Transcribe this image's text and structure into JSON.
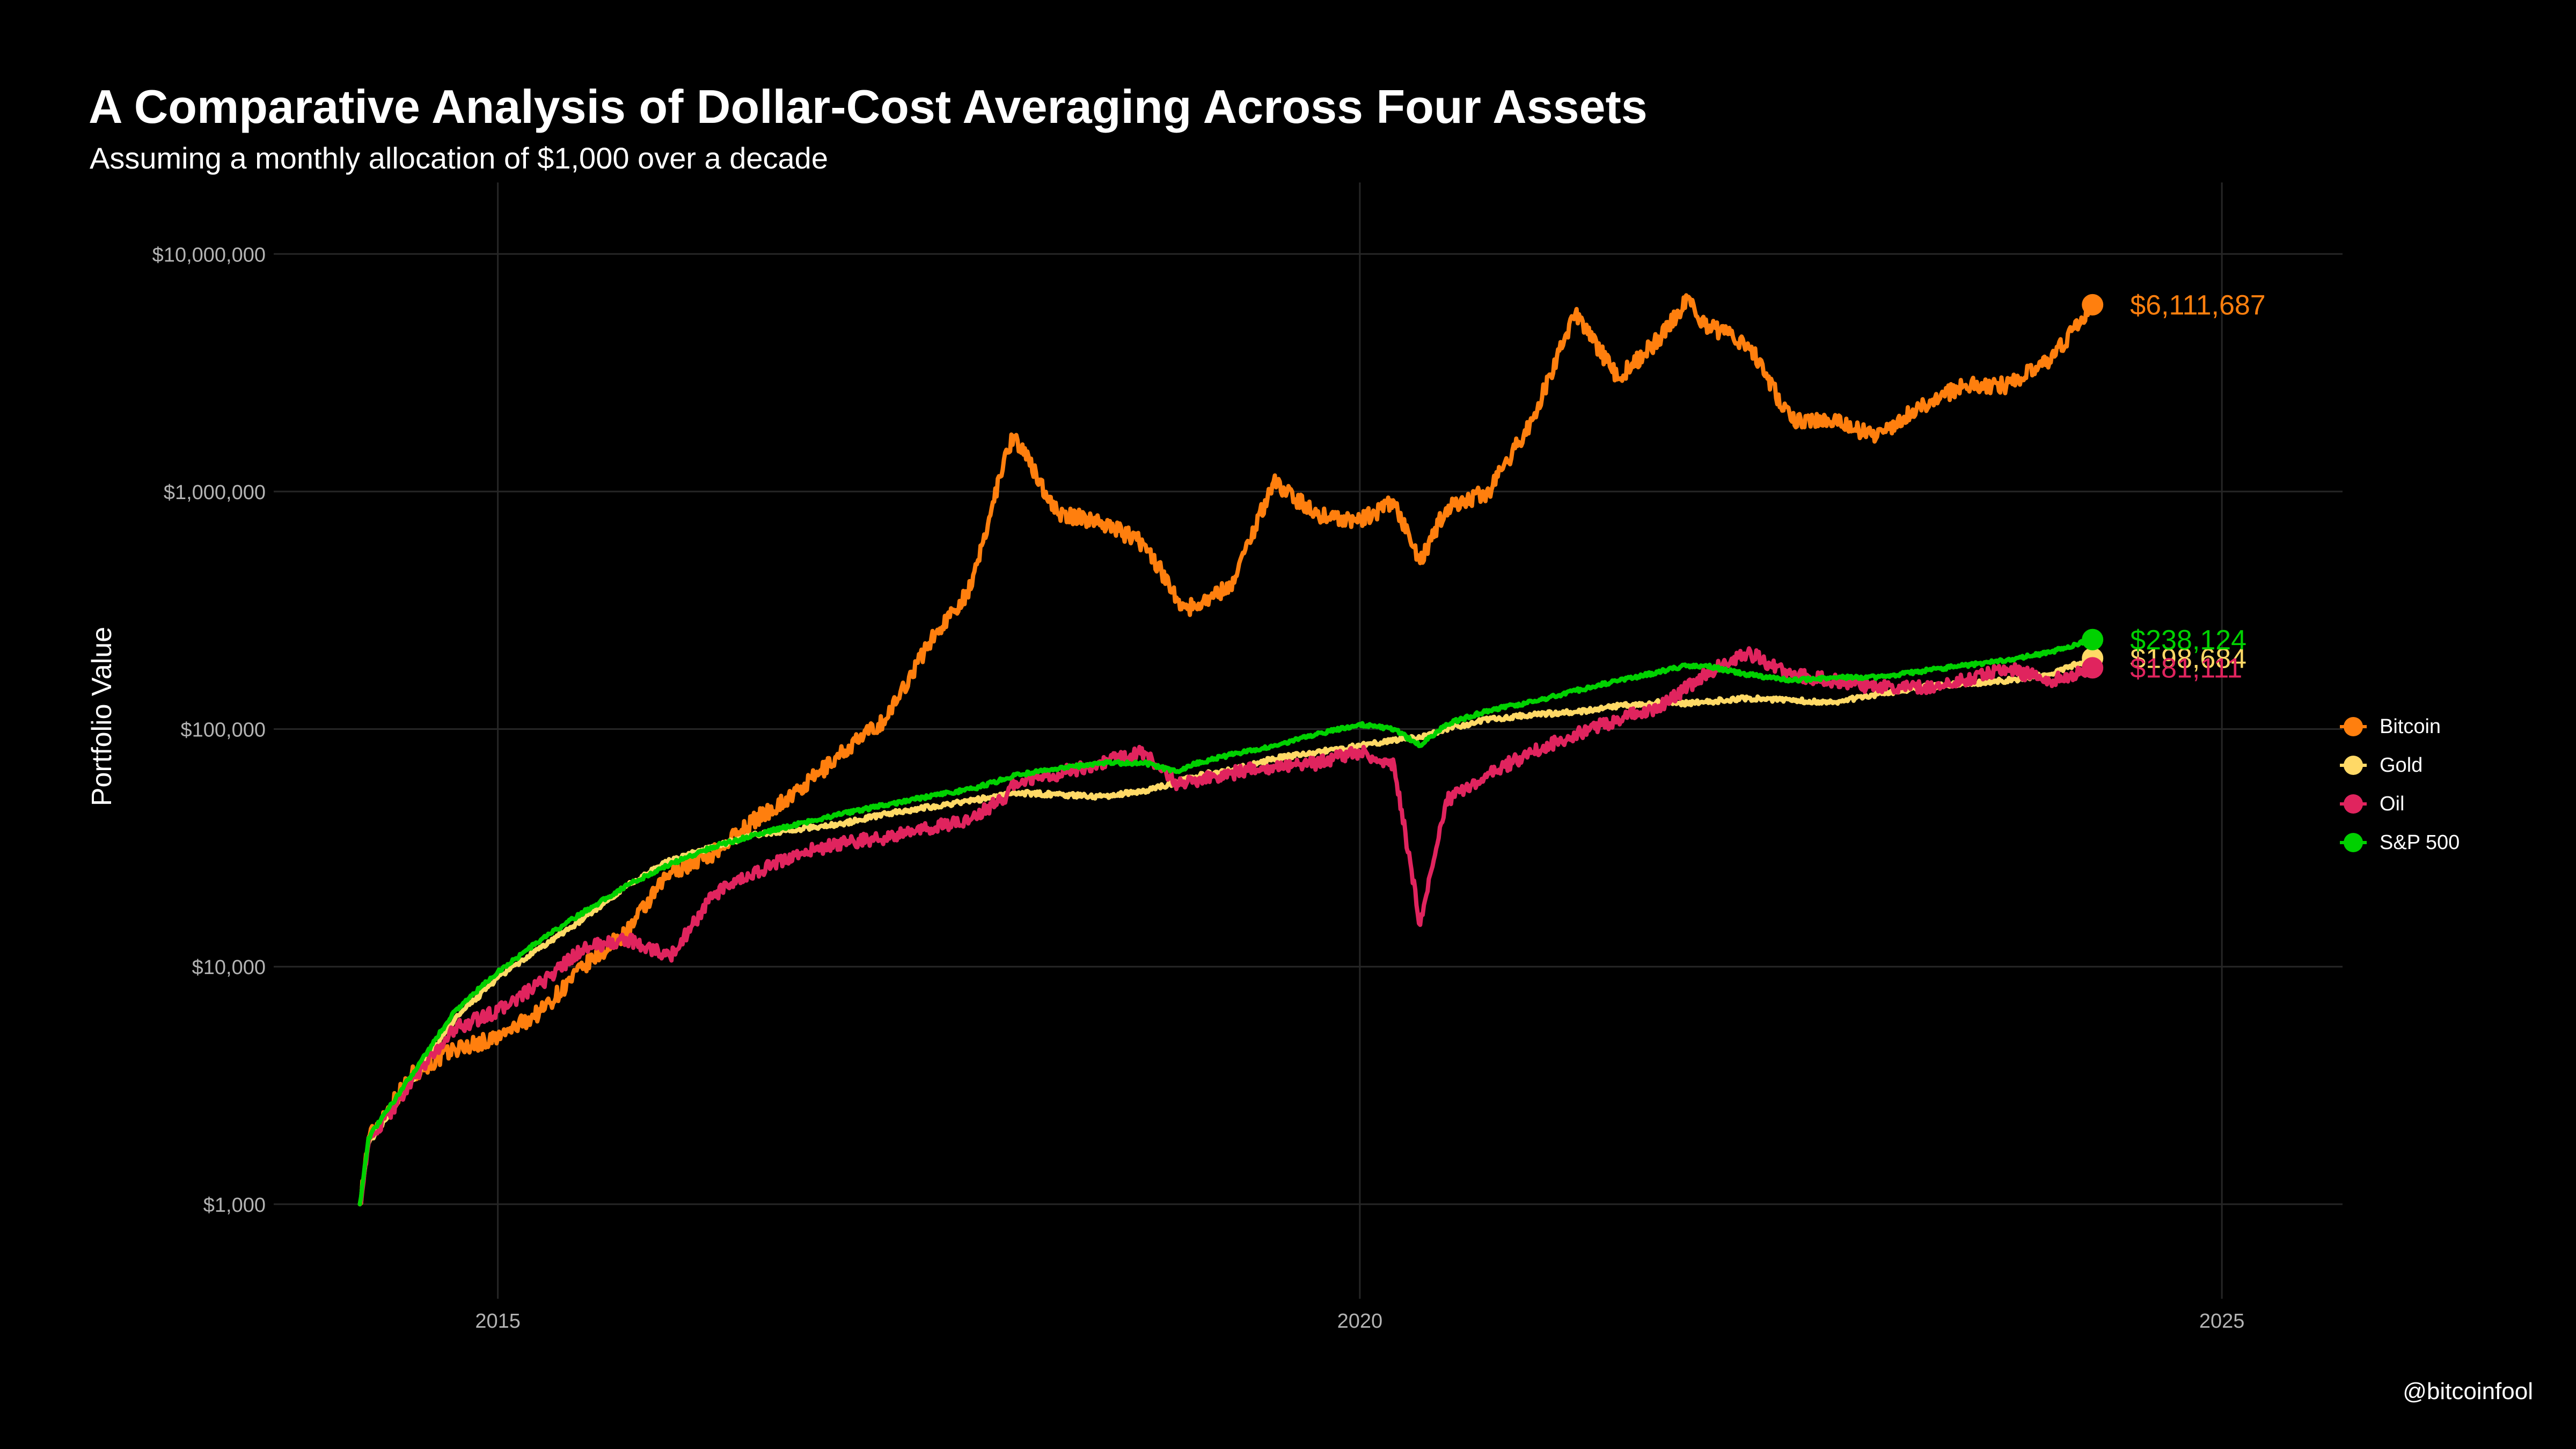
{
  "title": "A Comparative Analysis of Dollar-Cost Averaging Across Four Assets",
  "subtitle": "Assuming a monthly allocation of $1,000 over a decade",
  "credit": "@bitcoinfool",
  "chart_data": {
    "type": "line",
    "title": "A Comparative Analysis of Dollar-Cost Averaging Across Four Assets",
    "subtitle": "Assuming a monthly allocation of $1,000 over a decade",
    "xlabel": "",
    "ylabel": "Portfolio Value",
    "yscale": "log",
    "xlim": [
      2013.7,
      2025.7
    ],
    "ylim": [
      400,
      20000000
    ],
    "x_ticks": [
      2015,
      2020,
      2025
    ],
    "x_tick_labels": [
      "2015",
      "2020",
      "2025"
    ],
    "y_ticks": [
      1000,
      10000,
      100000,
      1000000,
      10000000
    ],
    "y_tick_labels": [
      "$1,000",
      "$10,000",
      "$100,000",
      "$1,000,000",
      "$10,000,000"
    ],
    "grid": true,
    "legend": "right",
    "x": [
      2014.2,
      2014.25,
      2014.5,
      2014.75,
      2015.0,
      2015.25,
      2015.5,
      2015.75,
      2016.0,
      2016.25,
      2016.5,
      2016.75,
      2017.0,
      2017.25,
      2017.5,
      2017.75,
      2017.95,
      2018.0,
      2018.25,
      2018.5,
      2018.75,
      2018.95,
      2019.0,
      2019.25,
      2019.5,
      2019.75,
      2020.0,
      2020.2,
      2020.35,
      2020.5,
      2020.75,
      2021.0,
      2021.25,
      2021.5,
      2021.75,
      2021.9,
      2022.0,
      2022.25,
      2022.5,
      2022.75,
      2023.0,
      2023.25,
      2023.5,
      2023.75,
      2024.0,
      2024.25
    ],
    "series": [
      {
        "name": "Bitcoin",
        "color": "#FF7F0E",
        "end_label": "$6,111,687",
        "values": [
          1000,
          1900,
          3500,
          4500,
          5000,
          6500,
          10000,
          14000,
          25000,
          30000,
          42000,
          55000,
          80000,
          110000,
          230000,
          400000,
          1500000,
          1700000,
          800000,
          750000,
          600000,
          350000,
          320000,
          400000,
          1100000,
          800000,
          750000,
          900000,
          500000,
          850000,
          1000000,
          2000000,
          5600000,
          3000000,
          4500000,
          6500000,
          5000000,
          4200000,
          2000000,
          2000000,
          1700000,
          2300000,
          2800000,
          2800000,
          3500000,
          6111687
        ]
      },
      {
        "name": "Gold",
        "color": "#FFD966",
        "end_label": "$198,684",
        "values": [
          1000,
          1800,
          3300,
          6000,
          9000,
          12000,
          16000,
          22000,
          28000,
          32000,
          36000,
          38000,
          40000,
          44000,
          47000,
          50000,
          53000,
          54000,
          53000,
          52000,
          55000,
          60000,
          63000,
          67000,
          75000,
          80000,
          85000,
          90000,
          92000,
          100000,
          110000,
          115000,
          118000,
          125000,
          130000,
          128000,
          130000,
          135000,
          132000,
          130000,
          140000,
          150000,
          155000,
          160000,
          170000,
          198684
        ]
      },
      {
        "name": "Oil",
        "color": "#E0245E",
        "end_label": "$181,111",
        "values": [
          1000,
          1800,
          3300,
          5500,
          6500,
          8500,
          12000,
          13000,
          11000,
          20000,
          25000,
          30000,
          33000,
          35000,
          38000,
          42000,
          52000,
          60000,
          65000,
          72000,
          80000,
          58000,
          60000,
          65000,
          70000,
          72000,
          80000,
          70000,
          15000,
          50000,
          65000,
          80000,
          95000,
          110000,
          125000,
          150000,
          170000,
          210000,
          170000,
          160000,
          150000,
          150000,
          160000,
          180000,
          160000,
          181111
        ]
      },
      {
        "name": "S&P 500",
        "color": "#00D100",
        "end_label": "$238,124",
        "values": [
          1000,
          1900,
          3500,
          6500,
          9500,
          13000,
          17000,
          22000,
          27000,
          32000,
          36000,
          40000,
          44000,
          48000,
          52000,
          56000,
          62000,
          64000,
          68000,
          72000,
          72000,
          66000,
          70000,
          78000,
          85000,
          95000,
          105000,
          100000,
          85000,
          105000,
          120000,
          130000,
          145000,
          160000,
          175000,
          185000,
          185000,
          170000,
          160000,
          165000,
          165000,
          175000,
          185000,
          195000,
          210000,
          238124
        ]
      }
    ]
  }
}
